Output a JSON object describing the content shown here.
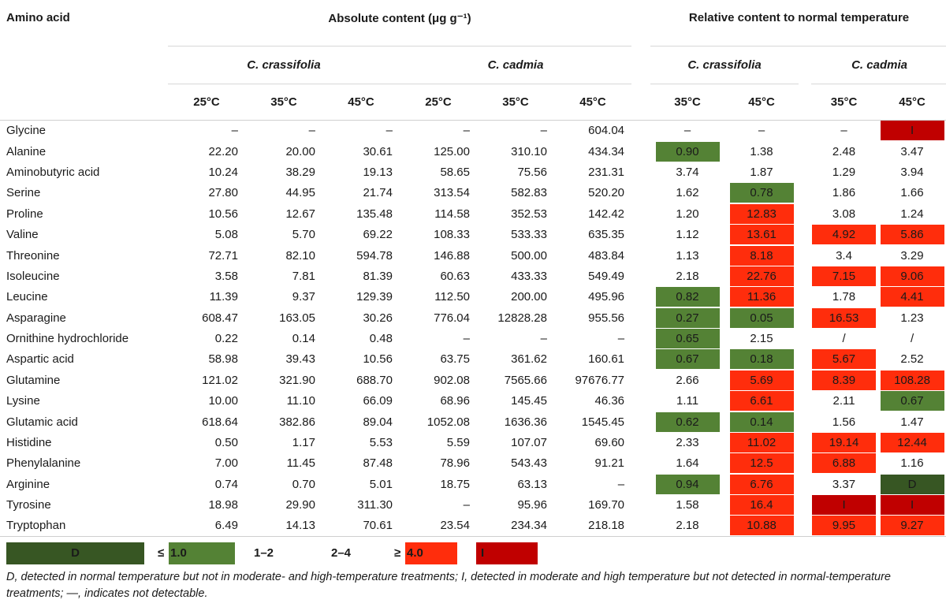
{
  "header": {
    "col1": "Amino acid",
    "absolute": "Absolute content (μg g⁻¹)",
    "relative": "Relative content to normal temperature",
    "species": [
      "C. crassifolia",
      "C. cadmia",
      "C. crassifolia",
      "C. cadmia"
    ],
    "temps_abs": [
      "25°C",
      "35°C",
      "45°C",
      "25°C",
      "35°C",
      "45°C"
    ],
    "temps_rel": [
      "35°C",
      "45°C",
      "35°C",
      "45°C"
    ]
  },
  "colors": {
    "le1": "#548235",
    "r12": "#c6e0b4",
    "r24": "#f4b183",
    "ge4": "#ff2d0c",
    "I": "#c00000",
    "D": "#375623"
  },
  "rows": [
    {
      "name": "Glycine",
      "abs": [
        "–",
        "–",
        "–",
        "–",
        "–",
        "604.04"
      ],
      "rel": [
        {
          "v": "–",
          "c": "none"
        },
        {
          "v": "–",
          "c": "none"
        },
        {
          "v": "–",
          "c": "none"
        },
        {
          "v": "I",
          "c": "I"
        }
      ]
    },
    {
      "name": "Alanine",
      "abs": [
        "22.20",
        "20.00",
        "30.61",
        "125.00",
        "310.10",
        "434.34"
      ],
      "rel": [
        {
          "v": "0.90",
          "c": "le1"
        },
        {
          "v": "1.38",
          "c": "r12"
        },
        {
          "v": "2.48",
          "c": "r24"
        },
        {
          "v": "3.47",
          "c": "r24"
        }
      ]
    },
    {
      "name": "Aminobutyric acid",
      "abs": [
        "10.24",
        "38.29",
        "19.13",
        "58.65",
        "75.56",
        "231.31"
      ],
      "rel": [
        {
          "v": "3.74",
          "c": "r24"
        },
        {
          "v": "1.87",
          "c": "r12"
        },
        {
          "v": "1.29",
          "c": "r12"
        },
        {
          "v": "3.94",
          "c": "r24"
        }
      ]
    },
    {
      "name": "Serine",
      "abs": [
        "27.80",
        "44.95",
        "21.74",
        "313.54",
        "582.83",
        "520.20"
      ],
      "rel": [
        {
          "v": "1.62",
          "c": "r12"
        },
        {
          "v": "0.78",
          "c": "le1"
        },
        {
          "v": "1.86",
          "c": "r12"
        },
        {
          "v": "1.66",
          "c": "r12"
        }
      ]
    },
    {
      "name": "Proline",
      "abs": [
        "10.56",
        "12.67",
        "135.48",
        "114.58",
        "352.53",
        "142.42"
      ],
      "rel": [
        {
          "v": "1.20",
          "c": "r12"
        },
        {
          "v": "12.83",
          "c": "ge4"
        },
        {
          "v": "3.08",
          "c": "r24"
        },
        {
          "v": "1.24",
          "c": "r12"
        }
      ]
    },
    {
      "name": "Valine",
      "abs": [
        "5.08",
        "5.70",
        "69.22",
        "108.33",
        "533.33",
        "635.35"
      ],
      "rel": [
        {
          "v": "1.12",
          "c": "r12"
        },
        {
          "v": "13.61",
          "c": "ge4"
        },
        {
          "v": "4.92",
          "c": "ge4"
        },
        {
          "v": "5.86",
          "c": "ge4"
        }
      ]
    },
    {
      "name": "Threonine",
      "abs": [
        "72.71",
        "82.10",
        "594.78",
        "146.88",
        "500.00",
        "483.84"
      ],
      "rel": [
        {
          "v": "1.13",
          "c": "r12"
        },
        {
          "v": "8.18",
          "c": "ge4"
        },
        {
          "v": "3.4",
          "c": "r24"
        },
        {
          "v": "3.29",
          "c": "r24"
        }
      ]
    },
    {
      "name": "Isoleucine",
      "abs": [
        "3.58",
        "7.81",
        "81.39",
        "60.63",
        "433.33",
        "549.49"
      ],
      "rel": [
        {
          "v": "2.18",
          "c": "r24"
        },
        {
          "v": "22.76",
          "c": "ge4"
        },
        {
          "v": "7.15",
          "c": "ge4"
        },
        {
          "v": "9.06",
          "c": "ge4"
        }
      ]
    },
    {
      "name": "Leucine",
      "abs": [
        "11.39",
        "9.37",
        "129.39",
        "112.50",
        "200.00",
        "495.96"
      ],
      "rel": [
        {
          "v": "0.82",
          "c": "le1"
        },
        {
          "v": "11.36",
          "c": "ge4"
        },
        {
          "v": "1.78",
          "c": "r12"
        },
        {
          "v": "4.41",
          "c": "ge4"
        }
      ]
    },
    {
      "name": "Asparagine",
      "abs": [
        "608.47",
        "163.05",
        "30.26",
        "776.04",
        "12828.28",
        "955.56"
      ],
      "rel": [
        {
          "v": "0.27",
          "c": "le1"
        },
        {
          "v": "0.05",
          "c": "le1"
        },
        {
          "v": "16.53",
          "c": "ge4"
        },
        {
          "v": "1.23",
          "c": "r12"
        }
      ]
    },
    {
      "name": "Ornithine hydrochloride",
      "abs": [
        "0.22",
        "0.14",
        "0.48",
        "–",
        "–",
        "–"
      ],
      "rel": [
        {
          "v": "0.65",
          "c": "le1"
        },
        {
          "v": "2.15",
          "c": "r24"
        },
        {
          "v": "/",
          "c": "none"
        },
        {
          "v": "/",
          "c": "none"
        }
      ]
    },
    {
      "name": "Aspartic acid",
      "abs": [
        "58.98",
        "39.43",
        "10.56",
        "63.75",
        "361.62",
        "160.61"
      ],
      "rel": [
        {
          "v": "0.67",
          "c": "le1"
        },
        {
          "v": "0.18",
          "c": "le1"
        },
        {
          "v": "5.67",
          "c": "ge4"
        },
        {
          "v": "2.52",
          "c": "r24"
        }
      ]
    },
    {
      "name": "Glutamine",
      "abs": [
        "121.02",
        "321.90",
        "688.70",
        "902.08",
        "7565.66",
        "97676.77"
      ],
      "rel": [
        {
          "v": "2.66",
          "c": "r24"
        },
        {
          "v": "5.69",
          "c": "ge4"
        },
        {
          "v": "8.39",
          "c": "ge4"
        },
        {
          "v": "108.28",
          "c": "ge4"
        }
      ]
    },
    {
      "name": "Lysine",
      "abs": [
        "10.00",
        "11.10",
        "66.09",
        "68.96",
        "145.45",
        "46.36"
      ],
      "rel": [
        {
          "v": "1.11",
          "c": "r12"
        },
        {
          "v": "6.61",
          "c": "ge4"
        },
        {
          "v": "2.11",
          "c": "r24"
        },
        {
          "v": "0.67",
          "c": "le1"
        }
      ]
    },
    {
      "name": "Glutamic acid",
      "abs": [
        "618.64",
        "382.86",
        "89.04",
        "1052.08",
        "1636.36",
        "1545.45"
      ],
      "rel": [
        {
          "v": "0.62",
          "c": "le1"
        },
        {
          "v": "0.14",
          "c": "le1"
        },
        {
          "v": "1.56",
          "c": "r12"
        },
        {
          "v": "1.47",
          "c": "r12"
        }
      ]
    },
    {
      "name": "Histidine",
      "abs": [
        "0.50",
        "1.17",
        "5.53",
        "5.59",
        "107.07",
        "69.60"
      ],
      "rel": [
        {
          "v": "2.33",
          "c": "r24"
        },
        {
          "v": "11.02",
          "c": "ge4"
        },
        {
          "v": "19.14",
          "c": "ge4"
        },
        {
          "v": "12.44",
          "c": "ge4"
        }
      ]
    },
    {
      "name": "Phenylalanine",
      "abs": [
        "7.00",
        "11.45",
        "87.48",
        "78.96",
        "543.43",
        "91.21"
      ],
      "rel": [
        {
          "v": "1.64",
          "c": "r12"
        },
        {
          "v": "12.5",
          "c": "ge4"
        },
        {
          "v": "6.88",
          "c": "ge4"
        },
        {
          "v": "1.16",
          "c": "r12"
        }
      ]
    },
    {
      "name": "Arginine",
      "abs": [
        "0.74",
        "0.70",
        "5.01",
        "18.75",
        "63.13",
        "–"
      ],
      "rel": [
        {
          "v": "0.94",
          "c": "le1"
        },
        {
          "v": "6.76",
          "c": "ge4"
        },
        {
          "v": "3.37",
          "c": "r24"
        },
        {
          "v": "D",
          "c": "D"
        }
      ]
    },
    {
      "name": "Tyrosine",
      "abs": [
        "18.98",
        "29.90",
        "311.30",
        "–",
        "95.96",
        "169.70"
      ],
      "rel": [
        {
          "v": "1.58",
          "c": "r12"
        },
        {
          "v": "16.4",
          "c": "ge4"
        },
        {
          "v": "I",
          "c": "I"
        },
        {
          "v": "I",
          "c": "I"
        }
      ]
    },
    {
      "name": "Tryptophan",
      "abs": [
        "6.49",
        "14.13",
        "70.61",
        "23.54",
        "234.34",
        "218.18"
      ],
      "rel": [
        {
          "v": "2.18",
          "c": "r24"
        },
        {
          "v": "10.88",
          "c": "ge4"
        },
        {
          "v": "9.95",
          "c": "ge4"
        },
        {
          "v": "9.27",
          "c": "ge4"
        }
      ]
    }
  ],
  "legend": [
    {
      "label": "D",
      "prefix": "",
      "c": "D"
    },
    {
      "label": "1.0",
      "prefix": "≤",
      "c": "le1"
    },
    {
      "label": "1–2",
      "prefix": "",
      "c": "r12"
    },
    {
      "label": "2–4",
      "prefix": "",
      "c": "r24"
    },
    {
      "label": "4.0",
      "prefix": "≥",
      "c": "ge4"
    },
    {
      "label": "I",
      "prefix": "",
      "c": "I"
    }
  ],
  "footnote": "D, detected in normal temperature but not in moderate- and high-temperature treatments; I, detected in moderate and high temperature but not detected in normal-temperature treatments; —, indicates not detectable."
}
